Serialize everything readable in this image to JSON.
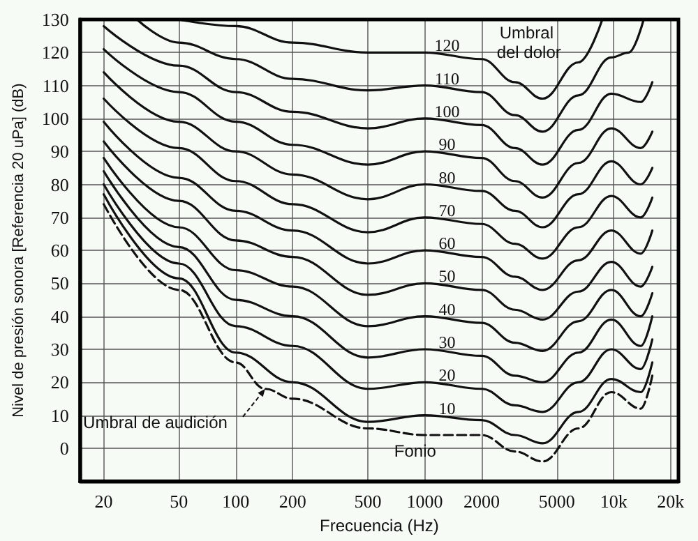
{
  "chart_data": {
    "type": "line",
    "xlabel": "Frecuencia (Hz)",
    "ylabel": "Nivel de presión sonora [Referencia 20 uPa] (dB)",
    "log": "x",
    "xlim": [
      15,
      22000
    ],
    "ylim": [
      -10,
      130
    ],
    "xticks": [
      20,
      50,
      100,
      200,
      500,
      1000,
      2000,
      5000,
      {
        "value": 10000,
        "label": "10k"
      },
      {
        "value": 20000,
        "label": "20k"
      }
    ],
    "yticks": [
      0,
      10,
      20,
      30,
      40,
      50,
      60,
      70,
      80,
      90,
      100,
      110,
      120,
      130
    ],
    "grid": true,
    "legend": false,
    "marker": "none",
    "line_style": "solid",
    "x": [
      20,
      50,
      100,
      200,
      500,
      1000,
      2000,
      3000,
      4200,
      6500,
      9700,
      13900,
      16000
    ],
    "series": [
      {
        "name": "120",
        "color": "#111111",
        "x": [
          50,
          100,
          200,
          500,
          700,
          1000,
          2000,
          3000,
          4200,
          6500,
          8700
        ],
        "values": [
          130,
          128,
          123,
          120,
          120,
          120,
          118,
          111,
          106,
          117,
          130
        ]
      },
      {
        "name": "110",
        "color": "#111111",
        "x": [
          30,
          50,
          100,
          200,
          500,
          1000,
          2000,
          3000,
          4200,
          6500,
          9700,
          12000,
          14400
        ],
        "values": [
          130,
          123,
          118,
          112,
          108.5,
          110,
          108,
          101,
          96,
          107,
          118.5,
          120,
          130
        ]
      },
      {
        "name": "100",
        "color": "#111111",
        "values": [
          128,
          116,
          108,
          102,
          97,
          100,
          98,
          91,
          86,
          96.5,
          107.5,
          105,
          111
        ]
      },
      {
        "name": "90",
        "color": "#111111",
        "values": [
          121,
          108,
          99,
          92,
          86,
          90,
          88,
          81,
          76,
          86.5,
          97,
          91,
          96
        ]
      },
      {
        "name": "80",
        "color": "#111111",
        "values": [
          114,
          99,
          90,
          83,
          75.5,
          80,
          78,
          72,
          67,
          77,
          87,
          80,
          85
        ]
      },
      {
        "name": "70",
        "color": "#111111",
        "values": [
          106,
          91,
          81,
          74,
          65.5,
          70,
          68,
          62,
          57.5,
          67,
          76.5,
          70,
          76
        ]
      },
      {
        "name": "60",
        "color": "#111111",
        "values": [
          99,
          82,
          72,
          66,
          56,
          60,
          58,
          52,
          48,
          57,
          66,
          59,
          66
        ]
      },
      {
        "name": "50",
        "color": "#111111",
        "values": [
          93,
          75,
          63,
          58,
          46.5,
          50,
          48,
          42,
          39,
          47.5,
          56.5,
          49,
          55
        ]
      },
      {
        "name": "40",
        "color": "#111111",
        "values": [
          88,
          67,
          54,
          49,
          37,
          40,
          38,
          32,
          29.5,
          38.5,
          48,
          40,
          47
        ]
      },
      {
        "name": "30",
        "color": "#111111",
        "values": [
          84,
          61,
          45,
          40,
          27.5,
          30,
          28,
          22,
          20,
          29,
          39,
          31,
          40
        ]
      },
      {
        "name": "20",
        "color": "#111111",
        "values": [
          80,
          56,
          37,
          31,
          18,
          20,
          18,
          13,
          11,
          20,
          30,
          24,
          33
        ]
      },
      {
        "name": "10",
        "color": "#111111",
        "values": [
          77,
          51.5,
          29,
          20,
          8,
          10,
          8.5,
          4,
          1.5,
          11,
          21,
          17,
          26
        ]
      },
      {
        "name": "Umbral de audición",
        "color": "#111111",
        "line_style": "dashed",
        "x": [
          20,
          50,
          100,
          143,
          200,
          500,
          1000,
          2000,
          3000,
          4200,
          6500,
          9700,
          13900,
          16000
        ],
        "values": [
          74,
          48,
          26,
          18,
          15,
          6,
          4,
          4,
          -1,
          -4,
          6,
          17,
          12,
          22
        ]
      }
    ],
    "annotations": [
      "Umbral del dolor",
      "Fonio"
    ]
  }
}
